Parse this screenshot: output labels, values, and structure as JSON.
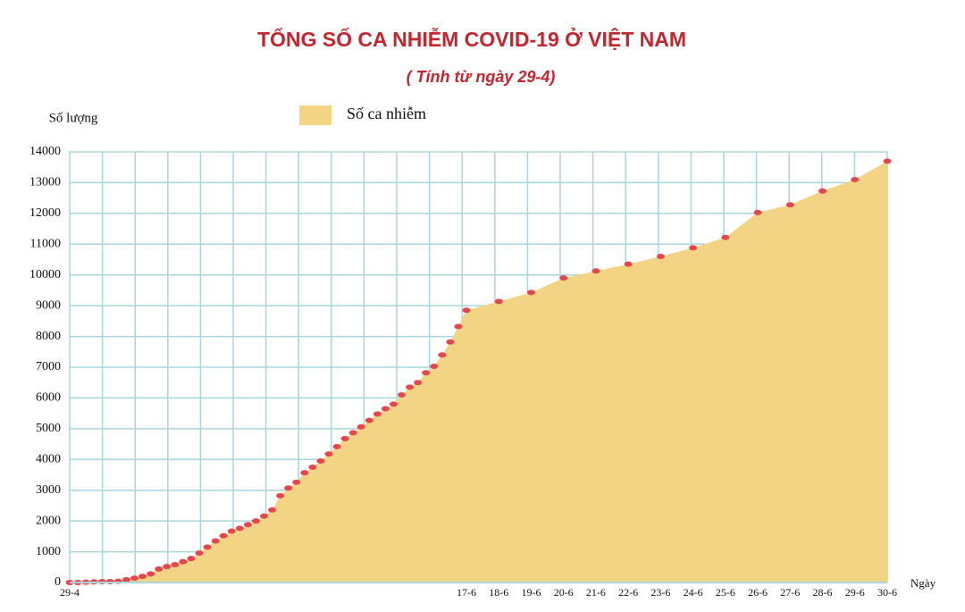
{
  "chart_data": {
    "type": "area",
    "title": "TỔNG SỐ CA NHIỄM COVID-19 Ở VIỆT NAM",
    "subtitle": "( Tính từ ngày 29-4)",
    "y_label": "Số lượng",
    "x_label": "Ngày",
    "categories": [
      "29-4",
      null,
      null,
      null,
      null,
      null,
      null,
      null,
      null,
      null,
      null,
      null,
      null,
      null,
      null,
      null,
      null,
      null,
      null,
      null,
      null,
      null,
      null,
      null,
      null,
      null,
      null,
      null,
      null,
      null,
      null,
      null,
      null,
      null,
      null,
      null,
      null,
      null,
      null,
      null,
      null,
      null,
      null,
      null,
      null,
      null,
      null,
      null,
      null,
      "17-6",
      "18-6",
      "19-6",
      "20-6",
      "21-6",
      "22-6",
      "23-6",
      "24-6",
      "25-6",
      "26-6",
      "27-6",
      "28-6",
      "29-6",
      "30-6"
    ],
    "series": [
      {
        "name": "Số ca nhiễm",
        "color": "#f3d485",
        "marker_color": "#e5464b",
        "values": [
          0,
          0,
          10,
          20,
          30,
          30,
          40,
          90,
          140,
          200,
          280,
          440,
          520,
          580,
          680,
          780,
          960,
          1150,
          1350,
          1520,
          1670,
          1760,
          1880,
          2000,
          2160,
          2360,
          2820,
          3070,
          3260,
          3570,
          3750,
          3950,
          4180,
          4420,
          4680,
          4870,
          5060,
          5270,
          5480,
          5650,
          5800,
          6100,
          6350,
          6500,
          6820,
          7030,
          7400,
          7820,
          8320,
          8850,
          9140,
          9430,
          9900,
          10130,
          10350,
          10600,
          10880,
          11220,
          12030,
          12280,
          12730,
          13100,
          13700
        ]
      }
    ],
    "ylim": [
      0,
      14000
    ],
    "yticks": [
      0,
      1000,
      2000,
      3000,
      4000,
      5000,
      6000,
      7000,
      8000,
      9000,
      10000,
      11000,
      12000,
      13000,
      14000
    ],
    "grid": true,
    "grid_color": "#a9d5de"
  }
}
